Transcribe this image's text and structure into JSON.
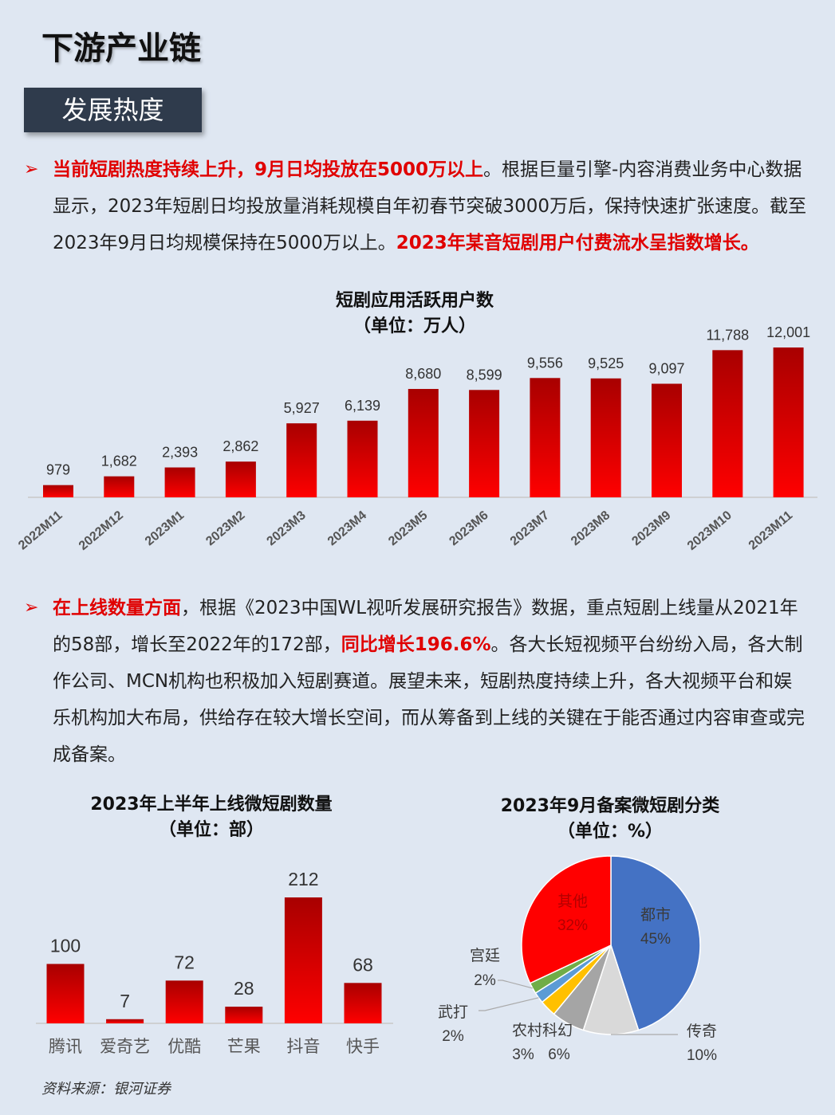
{
  "page": {
    "title": "下游产业链",
    "section_tag": "发展热度",
    "para1": {
      "red1": "当前短剧热度持续上升，9月日均投放在5000万以上",
      "text1": "。根据巨量引擎-内容消费业务中心数据显示，2023年短剧日均投放量消耗规模自年初春节突破3000万后，保持快速扩张速度。截至2023年9月日均规模保持在5000万以上。",
      "red2": "2023年某音短剧用户付费流水呈指数增长。"
    },
    "para2": {
      "red1": "在上线数量方面",
      "text1": "，根据《2023中国WL视听发展研究报告》数据，重点短剧上线量从2021年的58部，增长至2022年的172部，",
      "red2": "同比增长196.6%",
      "text2": "。各大长短视频平台纷纷入局，各大制作公司、MCN机构也积极加入短剧赛道。展望未来，短剧热度持续上升，各大视频平台和娱乐机构加大布局，供给存在较大增长空间，而从筹备到上线的关键在于能否通过内容审查或完成备案。"
    },
    "source": "资料来源：银河证券"
  },
  "chart_data": [
    {
      "type": "bar",
      "title": "短剧应用活跃用户数",
      "subtitle": "（单位：万人）",
      "categories": [
        "2022M11",
        "2022M12",
        "2023M1",
        "2023M2",
        "2023M3",
        "2023M4",
        "2023M5",
        "2023M6",
        "2023M7",
        "2023M8",
        "2023M9",
        "2023M10",
        "2023M11"
      ],
      "values": [
        979,
        1682,
        2393,
        2862,
        5927,
        6139,
        8680,
        8599,
        9556,
        9525,
        9097,
        11788,
        12001
      ],
      "labels": [
        "979",
        "1,682",
        "2,393",
        "2,862",
        "5,927",
        "6,139",
        "8,680",
        "8,599",
        "9,556",
        "9,525",
        "9,097",
        "11,788",
        "12,001"
      ],
      "color": "#e00000"
    },
    {
      "type": "bar",
      "title": "2023年上半年上线微短剧数量",
      "subtitle": "（单位：部）",
      "categories": [
        "腾讯",
        "爱奇艺",
        "优酷",
        "芒果",
        "抖音",
        "快手"
      ],
      "values": [
        100,
        7,
        72,
        28,
        212,
        68
      ],
      "labels": [
        "100",
        "7",
        "72",
        "28",
        "212",
        "68"
      ],
      "color": "#e00000"
    },
    {
      "type": "pie",
      "title": "2023年9月备案微短剧分类",
      "subtitle": "（单位：%）",
      "slices": [
        {
          "name": "都市",
          "value": 45,
          "label": "45%",
          "color": "#4472c4"
        },
        {
          "name": "传奇",
          "value": 10,
          "label": "10%",
          "color": "#d9d9d9"
        },
        {
          "name": "科幻",
          "value": 6,
          "label": "6%",
          "color": "#a5a5a5"
        },
        {
          "name": "农村",
          "value": 3,
          "label": "3%",
          "color": "#ffc000"
        },
        {
          "name": "武打",
          "value": 2,
          "label": "2%",
          "color": "#5b9bd5"
        },
        {
          "name": "宫廷",
          "value": 2,
          "label": "2%",
          "color": "#70ad47"
        },
        {
          "name": "其他",
          "value": 32,
          "label": "32%",
          "color": "#ff0000"
        }
      ]
    }
  ]
}
